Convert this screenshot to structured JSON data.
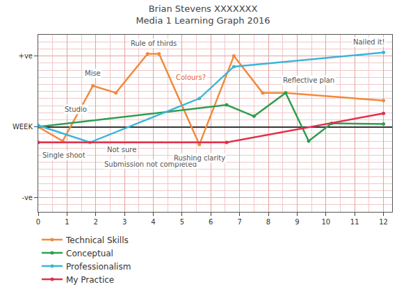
{
  "chart_data": {
    "type": "line",
    "title": "Brian Stevens XXXXXXX",
    "subtitle": "Media 1 Learning Graph 2016",
    "xlim": [
      0,
      12.3
    ],
    "xticks": [
      0,
      1,
      2,
      3,
      4,
      5,
      6,
      7,
      8,
      9,
      10,
      11,
      12
    ],
    "ylim": [
      -12,
      13
    ],
    "yticks": [
      {
        "value": -10,
        "label": "-ve"
      },
      {
        "value": 0,
        "label": "WEEK"
      },
      {
        "value": 10,
        "label": "+ve"
      }
    ],
    "grid": true,
    "legend": "bottom left",
    "series": [
      {
        "name": "Technical Skills",
        "color": "#f08a3c",
        "x": [
          0,
          0.85,
          1.9,
          2.7,
          3.8,
          4.2,
          5.6,
          6.8,
          7.8,
          8.6,
          12
        ],
        "values": [
          0,
          -2,
          5.8,
          4.8,
          10.3,
          10.3,
          -2.5,
          10,
          4.8,
          4.8,
          3.7
        ]
      },
      {
        "name": "Conceptual",
        "color": "#2e9e4f",
        "x": [
          0,
          6.55,
          7.5,
          8.6,
          9.4,
          10.2,
          12
        ],
        "values": [
          0,
          3.1,
          1.5,
          4.8,
          -2,
          0.5,
          0.4
        ]
      },
      {
        "name": "Professionalism",
        "color": "#3cb5d8",
        "x": [
          0,
          1.8,
          5.6,
          6.8,
          12
        ],
        "values": [
          0.2,
          -2.2,
          4,
          8.5,
          10.5
        ]
      },
      {
        "name": "My Practice",
        "color": "#e0304a",
        "x": [
          0,
          6.55,
          12
        ],
        "values": [
          -2.2,
          -2.2,
          1.9
        ]
      }
    ],
    "annotations": [
      {
        "text": "Studio",
        "x": 1.3,
        "y": 2.5
      },
      {
        "text": "Single shoot",
        "x": 0.9,
        "y": -4
      },
      {
        "text": "Mise",
        "x": 1.9,
        "y": 7.6
      },
      {
        "text": "Rule of thirds",
        "x": 4,
        "y": 11.8
      },
      {
        "text": "Colours?",
        "x": 5.3,
        "y": 7,
        "color": "#e8602c"
      },
      {
        "text": "Not sure",
        "x": 2.9,
        "y": -3.2
      },
      {
        "text": "Submission not completed",
        "x": 3.9,
        "y": -5.3
      },
      {
        "text": "Rushing clarity",
        "x": 5.6,
        "y": -4.4
      },
      {
        "text": "Reflective plan",
        "x": 9.4,
        "y": 6.6
      },
      {
        "text": "Nailed it!",
        "x": 11.5,
        "y": 12
      }
    ]
  }
}
